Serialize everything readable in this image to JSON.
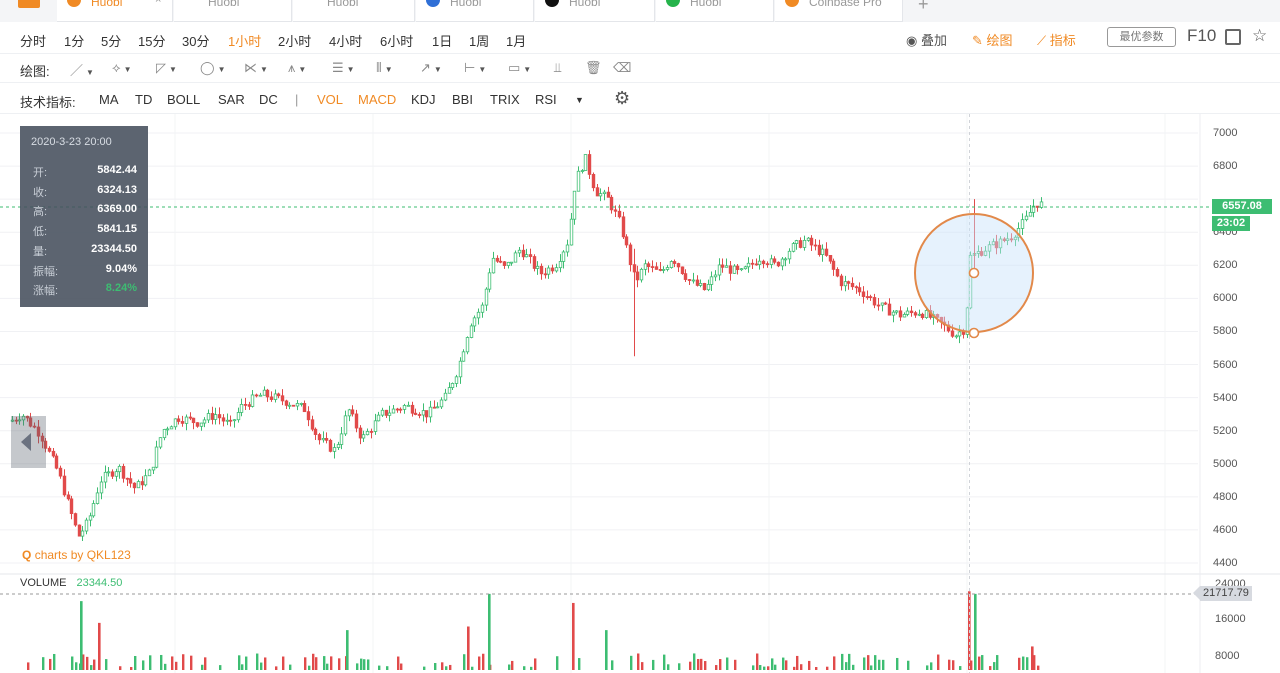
{
  "tabs": [
    {
      "label": "Huobi",
      "color": "#f08a24"
    },
    {
      "label": "Huobi",
      "color": "#2f6fd6"
    },
    {
      "label": "Huobi",
      "color": "#f08a24"
    },
    {
      "label": "Huobi",
      "color": "#2f6fd6"
    },
    {
      "label": "Huobi",
      "color": "#111111"
    },
    {
      "label": "Huobi",
      "color": "#25b34b"
    },
    {
      "label": "Coinbase Pro",
      "color": "#f08a24"
    }
  ],
  "tab_add": "+",
  "periods": [
    {
      "label": "分时",
      "active": false
    },
    {
      "label": "1分",
      "active": false
    },
    {
      "label": "5分",
      "active": false
    },
    {
      "label": "15分",
      "active": false
    },
    {
      "label": "30分",
      "active": false
    },
    {
      "label": "1小时",
      "active": true
    },
    {
      "label": "2小时",
      "active": false
    },
    {
      "label": "4小时",
      "active": false
    },
    {
      "label": "6小时",
      "active": false
    },
    {
      "label": "1日",
      "active": false
    },
    {
      "label": "1周",
      "active": false
    },
    {
      "label": "1月",
      "active": false
    }
  ],
  "toolbar": {
    "overlay": "叠加",
    "draw": "绘图",
    "indicator": "指标",
    "best_params": "最优参数",
    "f10": "F10"
  },
  "draw_tools": {
    "label": "绘图:"
  },
  "indicators": {
    "label": "技术指标:",
    "items": [
      {
        "label": "MA",
        "on": false
      },
      {
        "label": "TD",
        "on": false
      },
      {
        "label": "BOLL",
        "on": false
      },
      {
        "label": "SAR",
        "on": false
      },
      {
        "label": "DC",
        "on": false
      },
      {
        "label": "|",
        "on": false
      },
      {
        "label": "VOL",
        "on": true
      },
      {
        "label": "MACD",
        "on": true
      },
      {
        "label": "KDJ",
        "on": false
      },
      {
        "label": "BBI",
        "on": false
      },
      {
        "label": "TRIX",
        "on": false
      },
      {
        "label": "RSI",
        "on": false
      }
    ]
  },
  "info_box": {
    "date": "2020-3-23 20:00",
    "rows": [
      {
        "key": "开:",
        "value": "5842.44"
      },
      {
        "key": "收:",
        "value": "6324.13"
      },
      {
        "key": "高:",
        "value": "6369.00"
      },
      {
        "key": "低:",
        "value": "5841.15"
      },
      {
        "key": "量:",
        "value": "23344.50"
      },
      {
        "key": "振幅:",
        "value": "9.04%"
      },
      {
        "key": "涨幅:",
        "value": "8.24%"
      }
    ]
  },
  "watermark": "charts by QKL123",
  "volume": {
    "label": "VOLUME",
    "value": "23344.50",
    "tag": "21717.79"
  },
  "price_tag": "6557.08",
  "time_tag": "23:02",
  "price_axis": [
    "7000",
    "6800",
    "6400",
    "6200",
    "6000",
    "5800",
    "5600",
    "5400",
    "5200",
    "5000",
    "4800",
    "4600",
    "4400"
  ],
  "volume_axis": [
    "24000",
    "16000",
    "8000"
  ],
  "colors": {
    "up": "#3dbd72",
    "down": "#e14a4a",
    "accent": "#f08a24"
  },
  "chart_data": {
    "type": "candlestick",
    "interval": "1小时",
    "ylim": [
      4400,
      7000
    ],
    "volume_ylim": [
      0,
      24000
    ],
    "last_price": 6557.08,
    "highlighted_candle": {
      "open": 5842.44,
      "close": 6324.13,
      "high": 6369.0,
      "low": 5841.15,
      "volume": 23344.5
    },
    "path": [
      [
        0,
        5950
      ],
      [
        8,
        5250
      ],
      [
        22,
        5300
      ],
      [
        40,
        5180
      ],
      [
        58,
        4950
      ],
      [
        78,
        4560
      ],
      [
        88,
        4650
      ],
      [
        100,
        4900
      ],
      [
        118,
        4980
      ],
      [
        135,
        4850
      ],
      [
        150,
        4950
      ],
      [
        162,
        5200
      ],
      [
        178,
        5280
      ],
      [
        198,
        5250
      ],
      [
        215,
        5300
      ],
      [
        230,
        5230
      ],
      [
        242,
        5350
      ],
      [
        262,
        5420
      ],
      [
        285,
        5380
      ],
      [
        305,
        5330
      ],
      [
        318,
        5150
      ],
      [
        335,
        5080
      ],
      [
        348,
        5330
      ],
      [
        362,
        5150
      ],
      [
        382,
        5300
      ],
      [
        405,
        5350
      ],
      [
        428,
        5300
      ],
      [
        445,
        5400
      ],
      [
        458,
        5580
      ],
      [
        470,
        5850
      ],
      [
        482,
        5950
      ],
      [
        492,
        6250
      ],
      [
        505,
        6180
      ],
      [
        520,
        6300
      ],
      [
        540,
        6150
      ],
      [
        555,
        6200
      ],
      [
        568,
        6350
      ],
      [
        575,
        6700
      ],
      [
        585,
        6850
      ],
      [
        595,
        6650
      ],
      [
        608,
        6600
      ],
      [
        620,
        6450
      ],
      [
        635,
        6100
      ],
      [
        645,
        6200
      ],
      [
        660,
        6150
      ],
      [
        672,
        6250
      ],
      [
        690,
        6100
      ],
      [
        705,
        6050
      ],
      [
        720,
        6200
      ],
      [
        740,
        6150
      ],
      [
        760,
        6250
      ],
      [
        775,
        6200
      ],
      [
        790,
        6300
      ],
      [
        805,
        6350
      ],
      [
        825,
        6260
      ],
      [
        840,
        6100
      ],
      [
        860,
        6050
      ],
      [
        880,
        5950
      ],
      [
        900,
        5900
      ],
      [
        920,
        5920
      ],
      [
        940,
        5850
      ],
      [
        955,
        5780
      ],
      [
        965,
        5820
      ],
      [
        970,
        6250
      ],
      [
        985,
        6300
      ],
      [
        1000,
        6340
      ],
      [
        1012,
        6380
      ],
      [
        1025,
        6470
      ],
      [
        1035,
        6580
      ],
      [
        1045,
        6557
      ]
    ],
    "volume_spikes": [
      {
        "x": 80,
        "v": 19000
      },
      {
        "x": 98,
        "v": 13000
      },
      {
        "x": 346,
        "v": 11000
      },
      {
        "x": 467,
        "v": 12000
      },
      {
        "x": 488,
        "v": 21000
      },
      {
        "x": 572,
        "v": 18500
      },
      {
        "x": 605,
        "v": 11000
      },
      {
        "x": 968,
        "v": 21717.79
      },
      {
        "x": 974,
        "v": 21000
      },
      {
        "x": 1031,
        "v": 6500
      }
    ]
  }
}
